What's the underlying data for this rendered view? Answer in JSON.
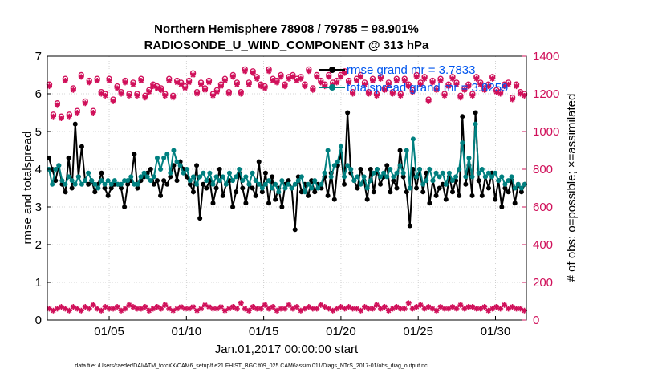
{
  "chart_data": {
    "type": "line",
    "title_line1": "Northern Hemisphere 78908 / 79785 = 98.901%",
    "title_line2": "RADIOSONDE_U_WIND_COMPONENT @ 313 hPa",
    "ylabel_left": "rmse and totalspread",
    "ylabel_right": "# of obs: o=possible; ×=assimilated",
    "xlabel": "Jan.01,2017 00:00:00 start",
    "footer": "data file: /Users/raeder/DAI/ATM_forcXX/CAM6_setup/f.e21.FHIST_BGC.f09_025.CAM6assim.011/Diags_NTrS_2017-01/obs_diag_output.nc",
    "x_range": [
      1,
      32
    ],
    "ylim_left": [
      0,
      7
    ],
    "ylim_right": [
      0,
      1400
    ],
    "left_ticks": [
      "0",
      "1",
      "2",
      "3",
      "4",
      "5",
      "6",
      "7"
    ],
    "right_ticks": [
      "0",
      "200",
      "400",
      "600",
      "800",
      "1000",
      "1200",
      "1400"
    ],
    "x_ticks": [
      {
        "day": 5,
        "label": "01/05"
      },
      {
        "day": 10,
        "label": "01/10"
      },
      {
        "day": 15,
        "label": "01/15"
      },
      {
        "day": 20,
        "label": "01/20"
      },
      {
        "day": 25,
        "label": "01/25"
      },
      {
        "day": 30,
        "label": "01/30"
      }
    ],
    "colors": {
      "rmse": "#000000",
      "spread": "#008080",
      "obs": "#d0105a",
      "legend_text": "#0055ee"
    },
    "legend": [
      {
        "series": "rmse",
        "label": "rmse grand mr = 3.7833"
      },
      {
        "series": "spread",
        "label": "totalspread grand mr = 3.8259"
      }
    ],
    "rmse": [
      4.3,
      4.0,
      3.7,
      4.1,
      3.6,
      3.4,
      4.3,
      3.5,
      5.2,
      3.8,
      4.6,
      3.7,
      3.6,
      3.7,
      3.4,
      3.6,
      3.9,
      3.5,
      3.3,
      3.5,
      3.6,
      3.6,
      3.5,
      3.0,
      3.6,
      3.7,
      4.4,
      3.5,
      3.7,
      3.8,
      3.9,
      4.0,
      3.6,
      3.7,
      3.3,
      3.7,
      3.6,
      3.8,
      4.1,
      3.7,
      4.2,
      4.0,
      3.8,
      3.6,
      3.4,
      4.1,
      2.7,
      3.6,
      3.5,
      3.7,
      3.1,
      3.5,
      4.0,
      3.3,
      3.6,
      3.7,
      3.0,
      3.4,
      3.9,
      3.5,
      3.1,
      3.6,
      3.5,
      3.3,
      4.2,
      3.4,
      3.9,
      3.1,
      3.8,
      3.2,
      3.5,
      3.0,
      3.6,
      3.7,
      3.5,
      2.4,
      3.8,
      3.4,
      3.6,
      3.3,
      3.7,
      3.4,
      3.6,
      3.5,
      3.8,
      3.3,
      3.9,
      3.2,
      4.1,
      4.4,
      3.6,
      5.5,
      3.9,
      3.7,
      3.5,
      4.0,
      3.7,
      3.2,
      4.0,
      3.4,
      4.0,
      3.6,
      3.8,
      4.1,
      3.4,
      3.7,
      3.5,
      4.5,
      3.8,
      3.4,
      2.5,
      4.0,
      3.5,
      4.0,
      3.4,
      3.9,
      3.1,
      3.7,
      3.3,
      3.5,
      3.6,
      3.2,
      3.8,
      3.4,
      3.7,
      3.3,
      5.4,
      3.6,
      4.1,
      3.3,
      5.5,
      3.7,
      3.3,
      3.8,
      3.5,
      3.9,
      3.2,
      3.7,
      3.0,
      3.5,
      3.4,
      3.7,
      3.1,
      3.6,
      3.4,
      3.6
    ],
    "spread": [
      4.0,
      3.6,
      4.0,
      4.1,
      3.7,
      3.6,
      3.8,
      3.7,
      3.6,
      3.8,
      3.6,
      3.7,
      3.9,
      3.7,
      3.6,
      3.5,
      3.7,
      3.6,
      3.7,
      3.6,
      3.7,
      3.6,
      3.6,
      3.7,
      3.7,
      3.8,
      3.6,
      3.6,
      3.8,
      3.9,
      3.8,
      3.7,
      3.8,
      4.3,
      4.0,
      4.3,
      4.4,
      3.9,
      4.5,
      4.2,
      4.1,
      3.9,
      4.0,
      3.7,
      3.8,
      3.6,
      3.8,
      3.9,
      3.7,
      3.9,
      3.6,
      3.8,
      3.7,
      3.8,
      3.6,
      3.9,
      3.7,
      3.8,
      4.0,
      3.7,
      3.8,
      3.6,
      3.9,
      3.7,
      3.6,
      3.5,
      3.6,
      3.7,
      3.5,
      3.6,
      3.4,
      3.7,
      3.5,
      3.6,
      3.5,
      3.6,
      3.7,
      3.8,
      3.4,
      3.6,
      3.5,
      3.7,
      3.5,
      3.6,
      3.9,
      4.5,
      3.8,
      4.1,
      4.2,
      4.6,
      3.8,
      4.1,
      4.0,
      3.7,
      3.8,
      3.6,
      3.8,
      3.5,
      3.7,
      3.9,
      4.0,
      3.8,
      3.9,
      3.8,
      4.0,
      3.8,
      3.9,
      4.1,
      3.9,
      4.5,
      3.5,
      4.8,
      3.8,
      4.0,
      3.6,
      3.7,
      4.0,
      3.7,
      3.9,
      3.8,
      3.9,
      3.6,
      3.9,
      3.7,
      3.8,
      4.0,
      4.7,
      3.8,
      4.3,
      3.8,
      5.2,
      3.9,
      4.0,
      3.8,
      3.9,
      3.8,
      3.9,
      3.7,
      3.8,
      3.6,
      3.7,
      3.8,
      3.5,
      3.6,
      3.5,
      3.6
    ],
    "possible": [
      1250,
      1090,
      1150,
      1080,
      1280,
      1090,
      1230,
      1110,
      1300,
      1160,
      1270,
      1110,
      1280,
      1210,
      1200,
      1280,
      1170,
      1240,
      1210,
      1270,
      1200,
      1260,
      1200,
      1280,
      1190,
      1220,
      1250,
      1240,
      1230,
      1200,
      1280,
      1190,
      1270,
      1260,
      1240,
      1270,
      1310,
      1210,
      1260,
      1230,
      1270,
      1200,
      1220,
      1250,
      1280,
      1210,
      1300,
      1260,
      1210,
      1330,
      1260,
      1320,
      1290,
      1250,
      1240,
      1330,
      1280,
      1270,
      1300,
      1250,
      1290,
      1300,
      1280,
      1290,
      1250,
      1330,
      1230,
      1300,
      1270,
      1250,
      1300,
      1260,
      1270,
      1300,
      1320,
      1270,
      1210,
      1280,
      1300,
      1260,
      1210,
      1280,
      1200,
      1290,
      1230,
      1260,
      1210,
      1280,
      1200,
      1280,
      1250,
      1220,
      1300,
      1260,
      1290,
      1170,
      1270,
      1230,
      1280,
      1200,
      1250,
      1290,
      1260,
      1190,
      1230,
      1250,
      1200,
      1290,
      1260,
      1230,
      1250,
      1290,
      1220,
      1210,
      1250,
      1260,
      1180,
      1250,
      1210,
      1200
    ],
    "assimilated": [
      1240,
      1080,
      1140,
      1070,
      1270,
      1080,
      1220,
      1100,
      1290,
      1150,
      1260,
      1100,
      1270,
      1200,
      1190,
      1270,
      1160,
      1230,
      1200,
      1260,
      1190,
      1250,
      1190,
      1270,
      1180,
      1210,
      1240,
      1230,
      1220,
      1190,
      1270,
      1180,
      1260,
      1250,
      1230,
      1260,
      1300,
      1200,
      1250,
      1220,
      1260,
      1190,
      1210,
      1240,
      1270,
      1200,
      1290,
      1250,
      1200,
      1320,
      1250,
      1310,
      1280,
      1240,
      1230,
      1320,
      1270,
      1260,
      1290,
      1240,
      1280,
      1290,
      1270,
      1280,
      1240,
      1320,
      1220,
      1290,
      1260,
      1240,
      1290,
      1250,
      1260,
      1290,
      1310,
      1260,
      1200,
      1270,
      1290,
      1250,
      1200,
      1270,
      1190,
      1280,
      1220,
      1250,
      1200,
      1270,
      1190,
      1270,
      1240,
      1210,
      1290,
      1250,
      1280,
      1160,
      1260,
      1220,
      1270,
      1190,
      1240,
      1280,
      1250,
      1180,
      1220,
      1240,
      1190,
      1280,
      1250,
      1220,
      1240,
      1280,
      1210,
      1200,
      1240,
      1250,
      1170,
      1240,
      1200,
      1190
    ],
    "low_count": [
      60,
      50,
      60,
      70,
      60,
      50,
      70,
      60,
      50,
      70,
      60,
      80,
      60,
      50,
      70,
      60,
      60,
      70,
      50,
      60,
      80,
      70,
      60,
      60,
      70,
      50,
      60,
      70,
      60,
      80,
      60,
      50,
      60,
      70,
      60,
      60,
      70,
      50,
      60,
      80,
      70,
      60,
      60,
      70,
      50,
      60,
      70,
      60,
      90,
      60,
      50,
      70,
      60,
      60,
      80,
      60,
      70,
      50,
      60,
      60,
      80,
      60,
      70,
      50,
      60,
      70,
      60,
      60,
      80,
      70,
      60,
      50,
      60,
      70,
      60,
      70,
      60,
      60,
      50,
      70,
      60,
      60,
      80,
      60,
      70,
      50,
      60,
      70,
      60,
      60,
      90,
      60,
      70,
      80,
      60,
      70,
      60,
      50,
      70,
      60,
      60,
      70,
      60,
      80,
      60,
      70,
      70,
      60,
      60,
      70,
      50,
      60,
      70,
      60,
      80,
      60,
      70,
      60,
      60,
      50
    ]
  }
}
